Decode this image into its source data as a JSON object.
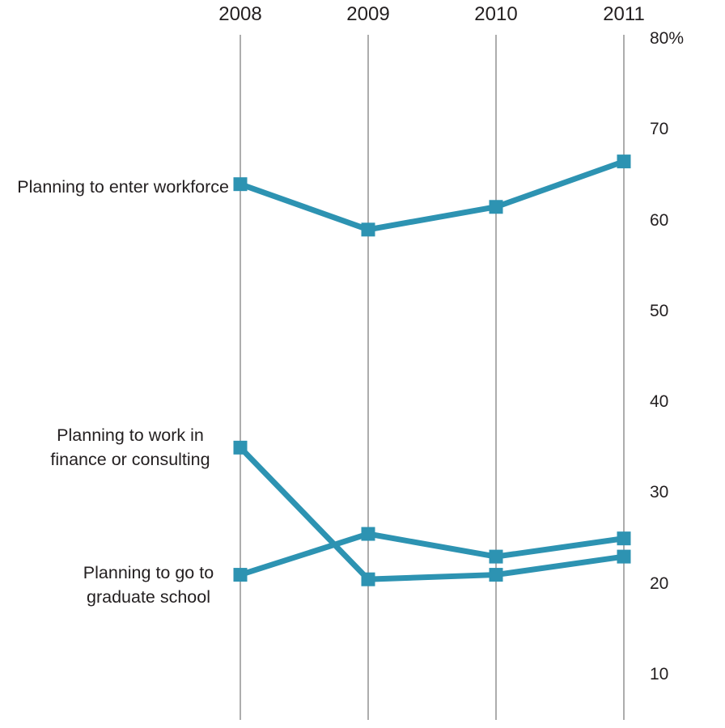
{
  "chart_data": {
    "type": "line",
    "x_labels": [
      "2008",
      "2009",
      "2010",
      "2011"
    ],
    "y_axis": {
      "side": "right",
      "unit": "%",
      "ticks": [
        "80%",
        "70",
        "60",
        "50",
        "40",
        "30",
        "20",
        "10"
      ],
      "tick_values": [
        80,
        70,
        60,
        50,
        40,
        30,
        20,
        10
      ],
      "top_value": 80,
      "bottom_value": 10
    },
    "grid": "vertical-only",
    "marker": "square",
    "legend_position": "left-inline",
    "colors": {
      "series": "#2d93b2",
      "gridline": "#8a8a8a",
      "text": "#231f20",
      "background": "#ffffff"
    },
    "series": [
      {
        "name": "Planning to enter workforce",
        "label_lines": [
          "Planning to enter workforce"
        ],
        "values": [
          64,
          59,
          61.5,
          66.5
        ]
      },
      {
        "name": "Planning to work in finance or consulting",
        "label_lines": [
          "Planning to work in",
          "finance or consulting"
        ],
        "values": [
          35,
          20.5,
          21,
          23
        ]
      },
      {
        "name": "Planning to go to graduate school",
        "label_lines": [
          "Planning to go to",
          "graduate school"
        ],
        "values": [
          21,
          25.5,
          23,
          25
        ]
      }
    ]
  }
}
